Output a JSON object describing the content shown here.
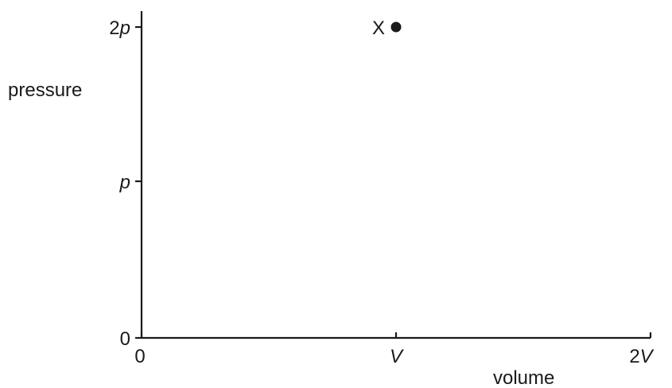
{
  "chart_data": {
    "type": "scatter",
    "title": "",
    "xlabel": "volume",
    "ylabel": "pressure",
    "xlim": [
      0,
      2
    ],
    "ylim": [
      0,
      2
    ],
    "grid": false,
    "x_ticks": [
      {
        "value": 0,
        "label": "0"
      },
      {
        "value": 1,
        "label": "V"
      },
      {
        "value": 2,
        "label": "2V"
      }
    ],
    "y_ticks": [
      {
        "value": 0,
        "label": "0"
      },
      {
        "value": 1,
        "label": "p"
      },
      {
        "value": 2,
        "label": "2p"
      }
    ],
    "points": [
      {
        "label": "X",
        "x": 1,
        "y": 2
      }
    ]
  }
}
